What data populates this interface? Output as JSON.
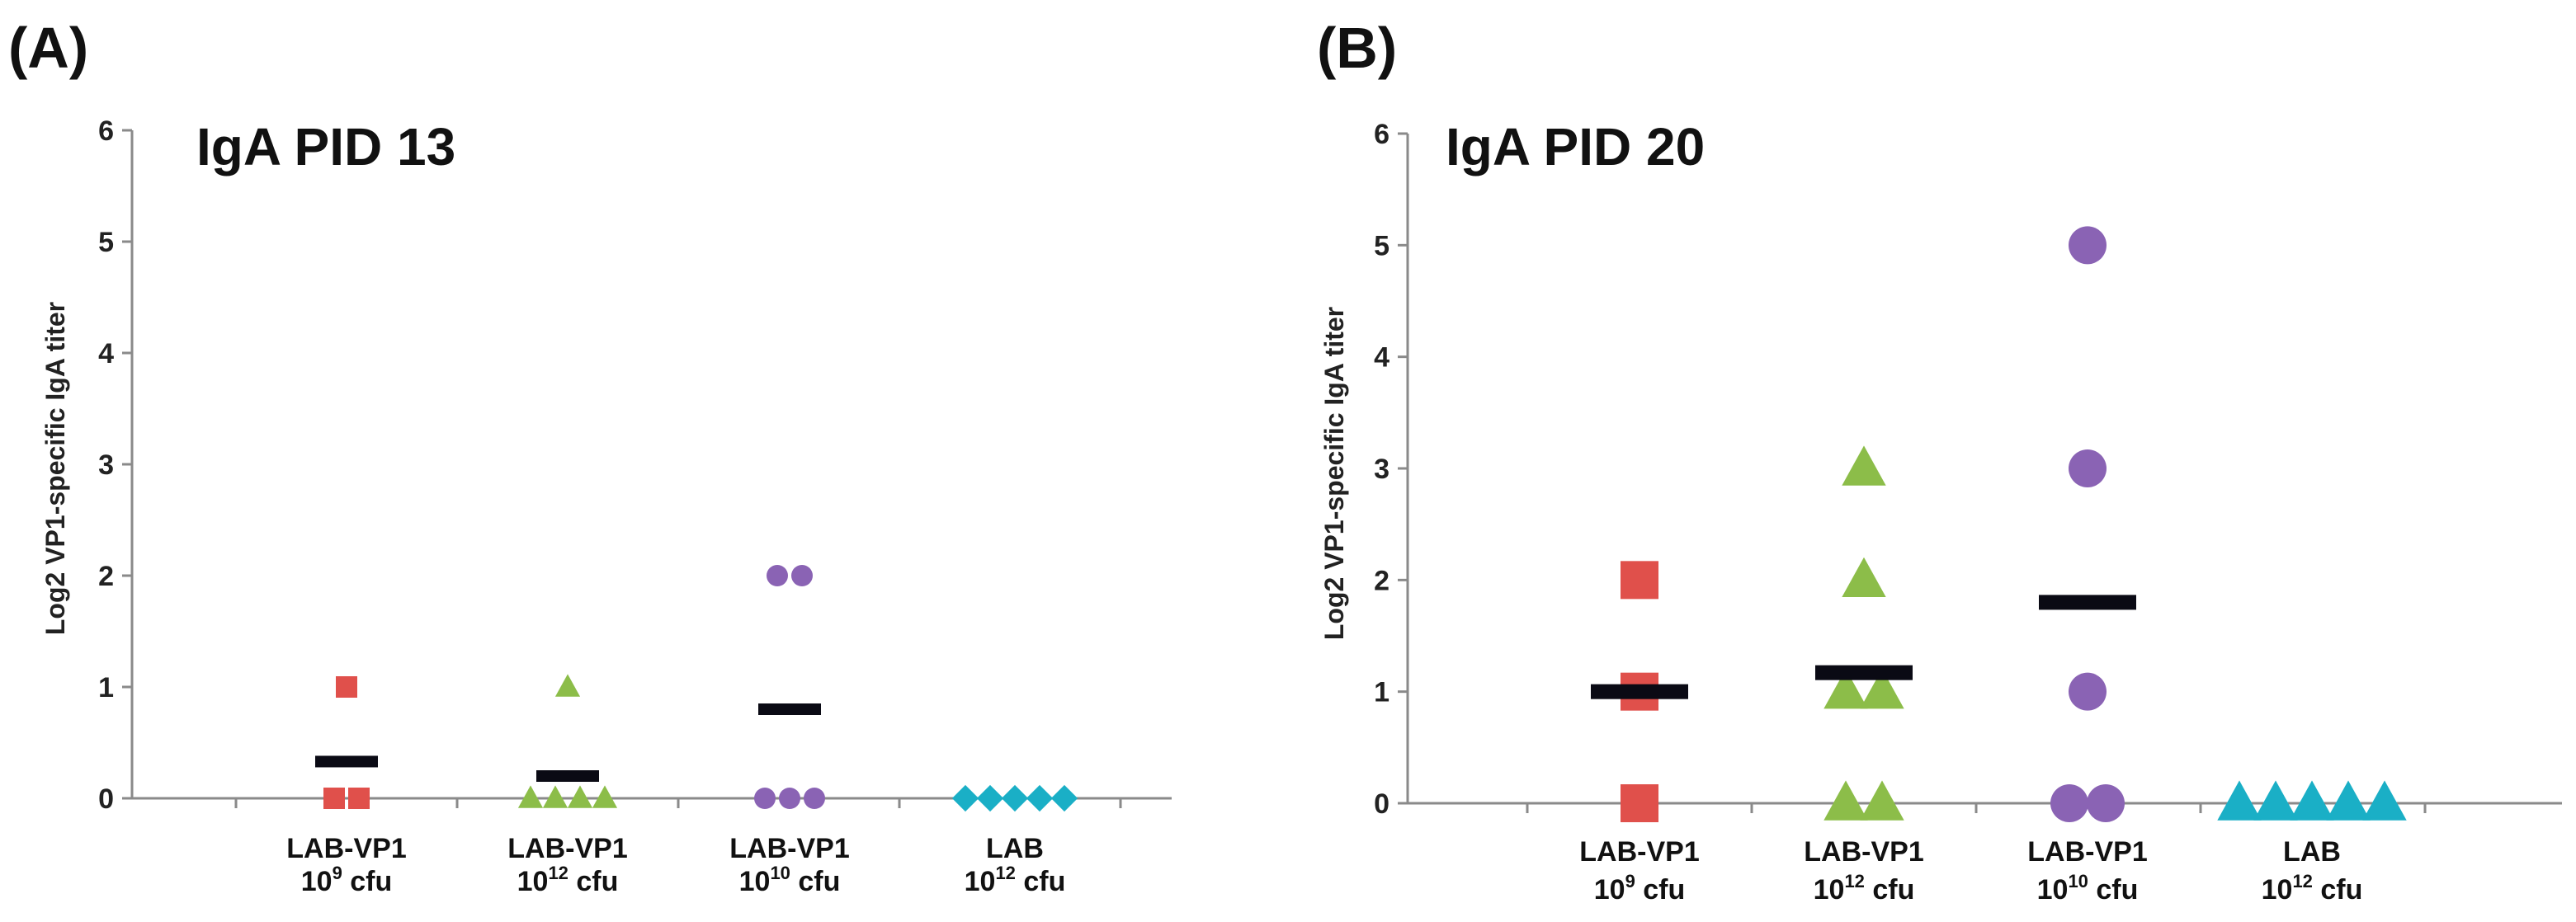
{
  "chart_data": [
    {
      "type": "scatter",
      "panel_label": "(A)",
      "title": "IgA PID 13",
      "ylabel": "Log2 VP1-specific IgA titer",
      "xlabel": "",
      "ylim": [
        0,
        6
      ],
      "yticks": [
        "0",
        "1",
        "2",
        "3",
        "4",
        "5",
        "6"
      ],
      "groups": [
        {
          "name": "LAB-VP1",
          "dose_base": "10",
          "dose_exp": "9",
          "dose_unit": "cfu",
          "marker": "square",
          "color": "#e0504b",
          "values": [
            1,
            0,
            0
          ],
          "mean": 0.33
        },
        {
          "name": "LAB-VP1",
          "dose_base": "10",
          "dose_exp": "12",
          "dose_unit": "cfu",
          "marker": "triangle",
          "color": "#8cbd49",
          "values": [
            1,
            0,
            0,
            0,
            0
          ],
          "mean": 0.2
        },
        {
          "name": "LAB-VP1",
          "dose_base": "10",
          "dose_exp": "10",
          "dose_unit": "cfu",
          "marker": "circle",
          "color": "#8a63b4",
          "values": [
            2,
            2,
            0,
            0,
            0
          ],
          "mean": 0.8
        },
        {
          "name": "LAB",
          "dose_base": "10",
          "dose_exp": "12",
          "dose_unit": "cfu",
          "marker": "diamond",
          "color": "#1aafc6",
          "values": [
            0,
            0,
            0,
            0,
            0
          ],
          "mean": null
        }
      ]
    },
    {
      "type": "scatter",
      "panel_label": "(B)",
      "title": "IgA PID 20",
      "ylabel": "Log2 VP1-specific IgA titer",
      "xlabel": "",
      "ylim": [
        0,
        6
      ],
      "yticks": [
        "0",
        "1",
        "2",
        "3",
        "4",
        "5",
        "6"
      ],
      "groups": [
        {
          "name": "LAB-VP1",
          "dose_base": "10",
          "dose_exp": "9",
          "dose_unit": "cfu",
          "marker": "square",
          "color": "#e0504b",
          "values": [
            2,
            1,
            0
          ],
          "mean": 1.0
        },
        {
          "name": "LAB-VP1",
          "dose_base": "10",
          "dose_exp": "12",
          "dose_unit": "cfu",
          "marker": "triangle",
          "color": "#8cbd49",
          "values": [
            3,
            2,
            1,
            1,
            0,
            0
          ],
          "mean": 1.17
        },
        {
          "name": "LAB-VP1",
          "dose_base": "10",
          "dose_exp": "10",
          "dose_unit": "cfu",
          "marker": "circle",
          "color": "#8a63b4",
          "values": [
            5,
            3,
            1,
            0,
            0
          ],
          "mean": 1.8
        },
        {
          "name": "LAB",
          "dose_base": "10",
          "dose_exp": "12",
          "dose_unit": "cfu",
          "marker": "triangle",
          "color": "#1aafc6",
          "values": [
            0,
            0,
            0,
            0,
            0
          ],
          "mean": null
        }
      ]
    }
  ]
}
